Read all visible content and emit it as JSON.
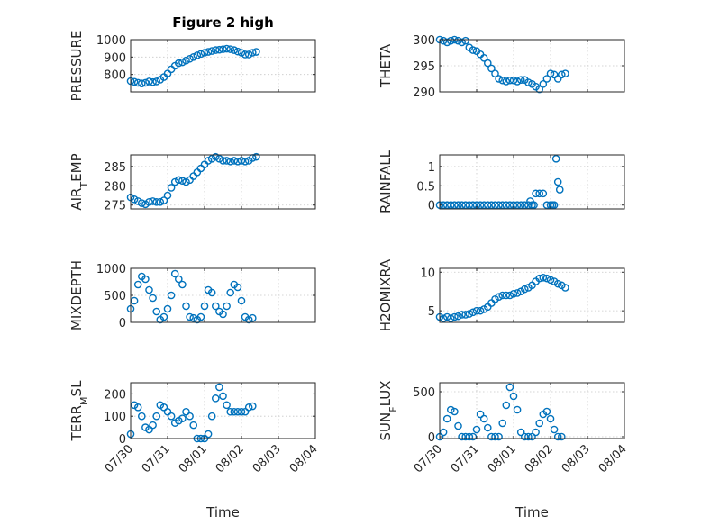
{
  "figure": {
    "title": "Figure 2 high",
    "xlabel": "Time"
  },
  "x_ticks": [
    "07/30",
    "07/31",
    "08/01",
    "08/02",
    "08/03",
    "08/04"
  ],
  "marker_color": "#0072BD",
  "chart_data": [
    {
      "type": "scatter",
      "id": "pressure",
      "ylabel_main": "PRESSURE",
      "ylabel_sub": "",
      "ylabel_tail": "",
      "ylim": [
        700,
        1000
      ],
      "yticks": [
        800,
        900,
        1000
      ],
      "x_range": [
        "07/30",
        "08/04"
      ],
      "grid": true,
      "x": [
        0,
        0.1,
        0.2,
        0.3,
        0.4,
        0.5,
        0.6,
        0.7,
        0.8,
        0.9,
        1.0,
        1.1,
        1.2,
        1.3,
        1.4,
        1.5,
        1.6,
        1.7,
        1.8,
        1.9,
        2.0,
        2.1,
        2.2,
        2.3,
        2.4,
        2.5,
        2.6,
        2.7,
        2.8,
        2.9,
        3.0,
        3.1,
        3.2,
        3.3,
        3.4
      ],
      "y": [
        762,
        758,
        752,
        748,
        752,
        760,
        756,
        760,
        770,
        785,
        805,
        830,
        850,
        865,
        870,
        880,
        890,
        900,
        910,
        918,
        925,
        930,
        935,
        940,
        942,
        945,
        948,
        945,
        940,
        932,
        925,
        915,
        915,
        925,
        930
      ]
    },
    {
      "type": "scatter",
      "id": "theta",
      "ylabel_main": "THETA",
      "ylabel_sub": "",
      "ylabel_tail": "",
      "ylim": [
        290,
        300
      ],
      "yticks": [
        290,
        295,
        300
      ],
      "x_range": [
        "07/30",
        "08/04"
      ],
      "grid": true,
      "x": [
        0,
        0.1,
        0.2,
        0.3,
        0.4,
        0.5,
        0.6,
        0.7,
        0.8,
        0.9,
        1.0,
        1.1,
        1.2,
        1.3,
        1.4,
        1.5,
        1.6,
        1.7,
        1.8,
        1.9,
        2.0,
        2.1,
        2.2,
        2.3,
        2.4,
        2.5,
        2.6,
        2.7,
        2.8,
        2.9,
        3.0,
        3.1,
        3.2,
        3.3,
        3.4
      ],
      "y": [
        300,
        299.8,
        299.5,
        299.8,
        300,
        299.8,
        299.5,
        299.8,
        298.5,
        298,
        297.8,
        297.2,
        296.5,
        295.5,
        294.5,
        293.5,
        292.5,
        292.2,
        292,
        292.2,
        292.2,
        292,
        292.3,
        292.3,
        291.8,
        291.5,
        291,
        290.5,
        291.5,
        292.5,
        293.5,
        293.3,
        292.5,
        293.3,
        293.5
      ]
    },
    {
      "type": "scatter",
      "id": "air_temp",
      "ylabel_main": "AIR",
      "ylabel_sub": "T",
      "ylabel_tail": "EMP",
      "ylim": [
        274,
        288
      ],
      "yticks": [
        275,
        280,
        285
      ],
      "x_range": [
        "07/30",
        "08/04"
      ],
      "grid": true,
      "x": [
        0,
        0.1,
        0.2,
        0.3,
        0.4,
        0.5,
        0.6,
        0.7,
        0.8,
        0.9,
        1.0,
        1.1,
        1.2,
        1.3,
        1.4,
        1.5,
        1.6,
        1.7,
        1.8,
        1.9,
        2.0,
        2.1,
        2.2,
        2.3,
        2.4,
        2.5,
        2.6,
        2.7,
        2.8,
        2.9,
        3.0,
        3.1,
        3.2,
        3.3,
        3.4
      ],
      "y": [
        277,
        276.5,
        276,
        275.5,
        275.2,
        275.8,
        276,
        275.8,
        275.8,
        276.2,
        277.5,
        279.5,
        281,
        281.5,
        281.3,
        281,
        281.5,
        282.5,
        283.5,
        284.5,
        285.5,
        286.5,
        287,
        287.5,
        287,
        286.5,
        286.5,
        286.3,
        286.5,
        286.3,
        286.5,
        286.3,
        286.5,
        287.2,
        287.5
      ]
    },
    {
      "type": "scatter",
      "id": "rainfall",
      "ylabel_main": "RAINFALL",
      "ylabel_sub": "",
      "ylabel_tail": "",
      "ylim": [
        -0.1,
        1.3
      ],
      "yticks": [
        0,
        0.5,
        1
      ],
      "x_range": [
        "07/30",
        "08/04"
      ],
      "grid": true,
      "x": [
        0,
        0.1,
        0.2,
        0.3,
        0.4,
        0.5,
        0.6,
        0.7,
        0.8,
        0.9,
        1.0,
        1.1,
        1.2,
        1.3,
        1.4,
        1.5,
        1.6,
        1.7,
        1.8,
        1.9,
        2.0,
        2.1,
        2.2,
        2.3,
        2.4,
        2.45,
        2.5,
        2.55,
        2.6,
        2.7,
        2.8,
        2.9,
        3.0,
        3.05,
        3.1,
        3.15,
        3.2,
        3.25
      ],
      "y": [
        0,
        0,
        0,
        0,
        0,
        0,
        0,
        0,
        0,
        0,
        0,
        0,
        0,
        0,
        0,
        0,
        0,
        0,
        0,
        0,
        0,
        0,
        0,
        0,
        0,
        0.1,
        0,
        0,
        0.3,
        0.3,
        0.3,
        0,
        0,
        0,
        0,
        1.2,
        0.6,
        0.4
      ]
    },
    {
      "type": "scatter",
      "id": "mixdepth",
      "ylabel_main": "MIXDEPTH",
      "ylabel_sub": "",
      "ylabel_tail": "",
      "ylim": [
        0,
        1000
      ],
      "yticks": [
        0,
        500,
        1000
      ],
      "x_range": [
        "07/30",
        "08/04"
      ],
      "grid": true,
      "x": [
        0,
        0.1,
        0.2,
        0.3,
        0.4,
        0.5,
        0.6,
        0.7,
        0.8,
        0.9,
        1.0,
        1.1,
        1.2,
        1.3,
        1.4,
        1.5,
        1.6,
        1.7,
        1.8,
        1.9,
        2.0,
        2.1,
        2.2,
        2.3,
        2.4,
        2.5,
        2.6,
        2.7,
        2.8,
        2.9,
        3.0,
        3.1,
        3.2,
        3.3
      ],
      "y": [
        250,
        400,
        700,
        850,
        800,
        600,
        450,
        200,
        50,
        100,
        250,
        500,
        900,
        800,
        700,
        300,
        100,
        80,
        50,
        100,
        300,
        600,
        550,
        300,
        200,
        150,
        300,
        550,
        700,
        650,
        400,
        100,
        50,
        80
      ]
    },
    {
      "type": "scatter",
      "id": "h2omixra",
      "ylabel_main": "H2OMIXRA",
      "ylabel_sub": "",
      "ylabel_tail": "",
      "ylim": [
        3.5,
        10.5
      ],
      "yticks": [
        5,
        10
      ],
      "x_range": [
        "07/30",
        "08/04"
      ],
      "grid": true,
      "x": [
        0,
        0.1,
        0.2,
        0.3,
        0.4,
        0.5,
        0.6,
        0.7,
        0.8,
        0.9,
        1.0,
        1.1,
        1.2,
        1.3,
        1.4,
        1.5,
        1.6,
        1.7,
        1.8,
        1.9,
        2.0,
        2.1,
        2.2,
        2.3,
        2.4,
        2.5,
        2.6,
        2.7,
        2.8,
        2.9,
        3.0,
        3.1,
        3.2,
        3.3,
        3.4
      ],
      "y": [
        4.2,
        4.0,
        4.2,
        4.0,
        4.2,
        4.3,
        4.5,
        4.5,
        4.6,
        4.8,
        5.0,
        5.0,
        5.2,
        5.5,
        6.0,
        6.5,
        6.8,
        7.0,
        7.0,
        7.0,
        7.2,
        7.3,
        7.5,
        7.8,
        8.0,
        8.3,
        8.8,
        9.2,
        9.3,
        9.2,
        9.0,
        8.8,
        8.5,
        8.3,
        8.0
      ]
    },
    {
      "type": "scatter",
      "id": "terr_msl",
      "ylabel_main": "TERR",
      "ylabel_sub": "M",
      "ylabel_tail": "SL",
      "ylim": [
        0,
        250
      ],
      "yticks": [
        0,
        100,
        200
      ],
      "x_range": [
        "07/30",
        "08/04"
      ],
      "grid": true,
      "x": [
        0,
        0.1,
        0.2,
        0.3,
        0.4,
        0.5,
        0.6,
        0.7,
        0.8,
        0.9,
        1.0,
        1.1,
        1.2,
        1.3,
        1.4,
        1.5,
        1.6,
        1.7,
        1.8,
        1.9,
        2.0,
        2.1,
        2.2,
        2.3,
        2.4,
        2.5,
        2.6,
        2.7,
        2.8,
        2.9,
        3.0,
        3.1,
        3.2,
        3.3
      ],
      "y": [
        20,
        150,
        140,
        100,
        50,
        40,
        60,
        100,
        150,
        140,
        120,
        100,
        70,
        80,
        90,
        120,
        100,
        60,
        0,
        0,
        0,
        20,
        100,
        180,
        230,
        190,
        150,
        120,
        120,
        120,
        120,
        120,
        140,
        145
      ]
    },
    {
      "type": "scatter",
      "id": "sun_flux",
      "ylabel_main": "SUN",
      "ylabel_sub": "F",
      "ylabel_tail": "LUX",
      "ylim": [
        -20,
        600
      ],
      "yticks": [
        0,
        500
      ],
      "x_range": [
        "07/30",
        "08/04"
      ],
      "grid": true,
      "x": [
        0,
        0.1,
        0.2,
        0.3,
        0.4,
        0.5,
        0.6,
        0.7,
        0.8,
        0.9,
        1.0,
        1.1,
        1.2,
        1.3,
        1.4,
        1.5,
        1.6,
        1.7,
        1.8,
        1.9,
        2.0,
        2.1,
        2.2,
        2.3,
        2.4,
        2.5,
        2.6,
        2.7,
        2.8,
        2.9,
        3.0,
        3.1,
        3.2,
        3.3
      ],
      "y": [
        0,
        50,
        200,
        300,
        280,
        120,
        0,
        0,
        0,
        0,
        80,
        250,
        200,
        100,
        0,
        0,
        0,
        150,
        350,
        550,
        450,
        300,
        50,
        0,
        0,
        0,
        50,
        150,
        250,
        280,
        200,
        80,
        0,
        0
      ]
    }
  ]
}
